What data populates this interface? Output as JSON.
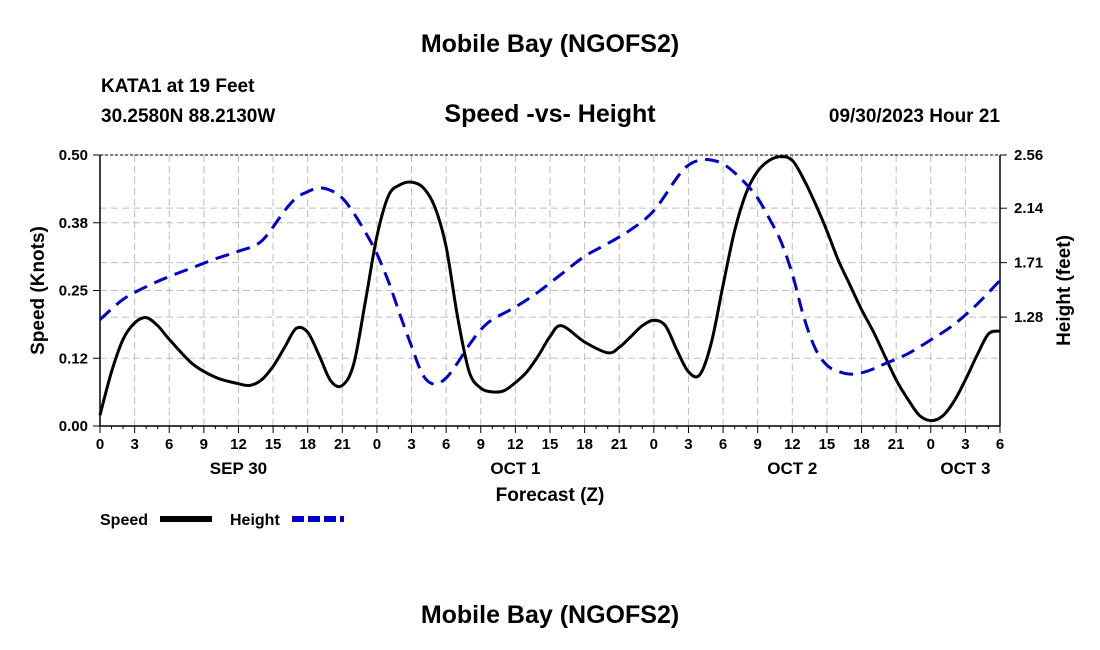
{
  "page": {
    "top_title": "Mobile Bay (NGOFS2)",
    "bottom_title": "Mobile Bay (NGOFS2)",
    "station": "KATA1 at 19 Feet",
    "coords": "30.2580N  88.2130W",
    "subtitle": "Speed -vs- Height",
    "datetime": "09/30/2023 Hour 21"
  },
  "chart_data": {
    "type": "line",
    "title": "Speed -vs- Height",
    "xlabel": "Forecast (Z)",
    "ylabel": "Speed (Knots)",
    "y2label": "Height (feet)",
    "xlim": [
      0,
      78
    ],
    "ylim": [
      0.0,
      0.5
    ],
    "y2lim": [
      0.42,
      2.56
    ],
    "grid": true,
    "x_ticks": [
      0,
      3,
      6,
      9,
      12,
      15,
      18,
      21,
      24,
      27,
      30,
      33,
      36,
      39,
      42,
      45,
      48,
      51,
      54,
      57,
      60,
      63,
      66,
      69,
      72,
      75,
      78
    ],
    "x_tick_labels": [
      "0",
      "3",
      "6",
      "9",
      "12",
      "15",
      "18",
      "21",
      "0",
      "3",
      "6",
      "9",
      "12",
      "15",
      "18",
      "21",
      "0",
      "3",
      "6",
      "9",
      "12",
      "15",
      "18",
      "21",
      "0",
      "3",
      "6"
    ],
    "y_ticks": [
      0.0,
      0.125,
      0.25,
      0.375,
      0.5
    ],
    "y_tick_labels": [
      "0.00",
      "0.12",
      "0.25",
      "0.38",
      "0.50"
    ],
    "y2_ticks": [
      1.28,
      1.71,
      2.14,
      2.56
    ],
    "y2_tick_labels": [
      "1.28",
      "1.71",
      "2.14",
      "2.56"
    ],
    "date_labels": [
      {
        "x": 12,
        "label": "SEP 30"
      },
      {
        "x": 36,
        "label": "OCT 1"
      },
      {
        "x": 60,
        "label": "OCT 2"
      },
      {
        "x": 75,
        "label": "OCT 3"
      }
    ],
    "legend": [
      {
        "name": "Speed",
        "color": "#000000",
        "dash": "solid"
      },
      {
        "name": "Height",
        "color": "#0000cc",
        "dash": "dashed"
      }
    ],
    "series": [
      {
        "name": "Speed",
        "axis": "left",
        "color": "#000000",
        "x": [
          0,
          1,
          2,
          3,
          4,
          5,
          6,
          8,
          10,
          12,
          13,
          14,
          15,
          16,
          17,
          18,
          19,
          20,
          21,
          22,
          23,
          24,
          25,
          26,
          27,
          28,
          29,
          30,
          31,
          32,
          33,
          34,
          35,
          36,
          37,
          38,
          39,
          40,
          42,
          44,
          45,
          46,
          47,
          48,
          49,
          50,
          51,
          52,
          53,
          54,
          55,
          56,
          57,
          58,
          59,
          60,
          61,
          62,
          63,
          64,
          65,
          66,
          67,
          68,
          69,
          70,
          71,
          72,
          73,
          74,
          75,
          76,
          77,
          78
        ],
        "y": [
          0.02,
          0.1,
          0.16,
          0.19,
          0.2,
          0.185,
          0.16,
          0.115,
          0.09,
          0.078,
          0.075,
          0.085,
          0.11,
          0.145,
          0.18,
          0.173,
          0.13,
          0.083,
          0.075,
          0.115,
          0.23,
          0.35,
          0.425,
          0.445,
          0.45,
          0.44,
          0.405,
          0.33,
          0.2,
          0.1,
          0.07,
          0.063,
          0.065,
          0.08,
          0.1,
          0.13,
          0.165,
          0.185,
          0.155,
          0.135,
          0.145,
          0.165,
          0.185,
          0.195,
          0.185,
          0.14,
          0.1,
          0.095,
          0.155,
          0.26,
          0.36,
          0.43,
          0.47,
          0.49,
          0.497,
          0.49,
          0.455,
          0.41,
          0.36,
          0.305,
          0.26,
          0.215,
          0.175,
          0.13,
          0.085,
          0.05,
          0.02,
          0.01,
          0.018,
          0.045,
          0.085,
          0.13,
          0.17,
          0.175
        ]
      },
      {
        "name": "Height",
        "axis": "right",
        "color": "#0000cc",
        "x": [
          0,
          2,
          4,
          6,
          8,
          10,
          12,
          14,
          16,
          17,
          18,
          19,
          20,
          21,
          22,
          23,
          24,
          25,
          26,
          27,
          28,
          29,
          30,
          31,
          32,
          33,
          34,
          36,
          38,
          40,
          42,
          44,
          46,
          48,
          50,
          51,
          52,
          53,
          54,
          55,
          56,
          57,
          58,
          59,
          60,
          61,
          62,
          63,
          64,
          65,
          66,
          67,
          68,
          70,
          72,
          74,
          76,
          78
        ],
        "y": [
          1.26,
          1.42,
          1.52,
          1.6,
          1.67,
          1.74,
          1.8,
          1.88,
          2.12,
          2.22,
          2.27,
          2.3,
          2.28,
          2.22,
          2.1,
          1.95,
          1.78,
          1.56,
          1.3,
          1.05,
          0.82,
          0.75,
          0.8,
          0.92,
          1.06,
          1.18,
          1.26,
          1.36,
          1.48,
          1.62,
          1.76,
          1.86,
          1.97,
          2.12,
          2.38,
          2.48,
          2.52,
          2.52,
          2.49,
          2.42,
          2.33,
          2.22,
          2.06,
          1.88,
          1.62,
          1.28,
          1.03,
          0.9,
          0.85,
          0.83,
          0.84,
          0.87,
          0.91,
          0.99,
          1.1,
          1.22,
          1.38,
          1.57
        ]
      }
    ]
  }
}
